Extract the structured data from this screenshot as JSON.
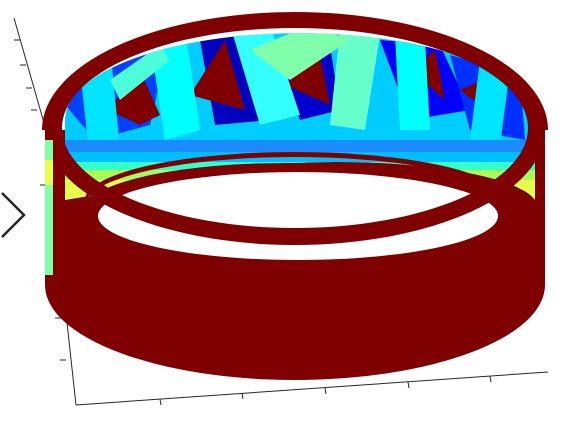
{
  "figure": {
    "type": "3d-surface-cylinder",
    "colormap": "jet",
    "colors": {
      "outer_wall": "#7f0000",
      "rim": "#7f0000",
      "inner_blue": "#0000cc",
      "inner_cyan": "#00ffff",
      "inner_light_green": "#7fff7f",
      "inner_yellow": "#e6ff4d",
      "axis_line": "#262626"
    }
  },
  "navigation": {
    "prev_icon": "chevron-left-icon"
  }
}
